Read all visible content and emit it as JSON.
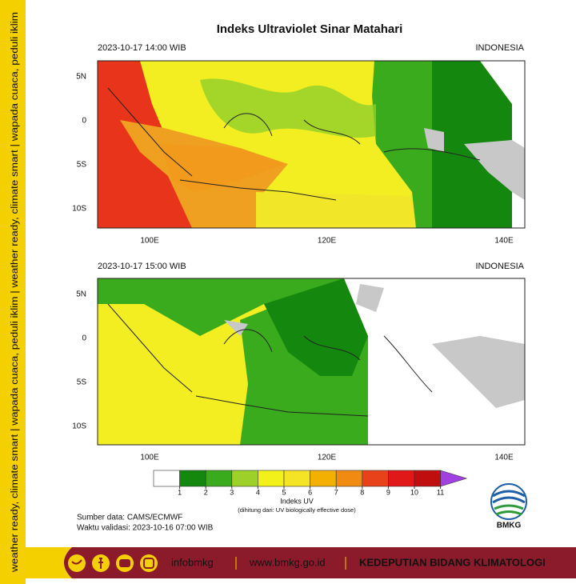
{
  "title": "Indeks Ultraviolet Sinar Matahari",
  "panels": [
    {
      "time": "2023-10-17  14:00 WIB",
      "region": "INDONESIA"
    },
    {
      "time": "2023-10-17  15:00 WIB",
      "region": "INDONESIA"
    }
  ],
  "lat_labels": [
    "5N",
    "0",
    "5S",
    "10S"
  ],
  "lon_labels": [
    "100E",
    "120E",
    "140E"
  ],
  "colorbar": {
    "label": "Indeks UV",
    "note": "(dihitung dari: UV biologically effective dose)",
    "ticks": [
      1,
      2,
      3,
      4,
      5,
      6,
      7,
      8,
      9,
      10,
      11
    ],
    "colors": [
      "#ffffff",
      "#14870f",
      "#3aab1c",
      "#9dd12a",
      "#f2f21a",
      "#f4e425",
      "#f4b000",
      "#f08a10",
      "#e8421a",
      "#e01818",
      "#c00d0d",
      "#a040e0"
    ]
  },
  "source": "Sumber data: CAMS/ECMWF",
  "validity": "Waktu validasi: 2023-10-16 07:00 WIB",
  "logo": "BMKG",
  "side_text": "weather ready, climate smart  |  wapada cuaca, peduli iklim  |  weather ready, climate smart  |  wapada cuaca, peduli iklim",
  "footer": {
    "handle": "infobmkg",
    "website": "www.bmkg.go.id",
    "department": "KEDEPUTIAN BIDANG KLIMATOLOGI"
  }
}
